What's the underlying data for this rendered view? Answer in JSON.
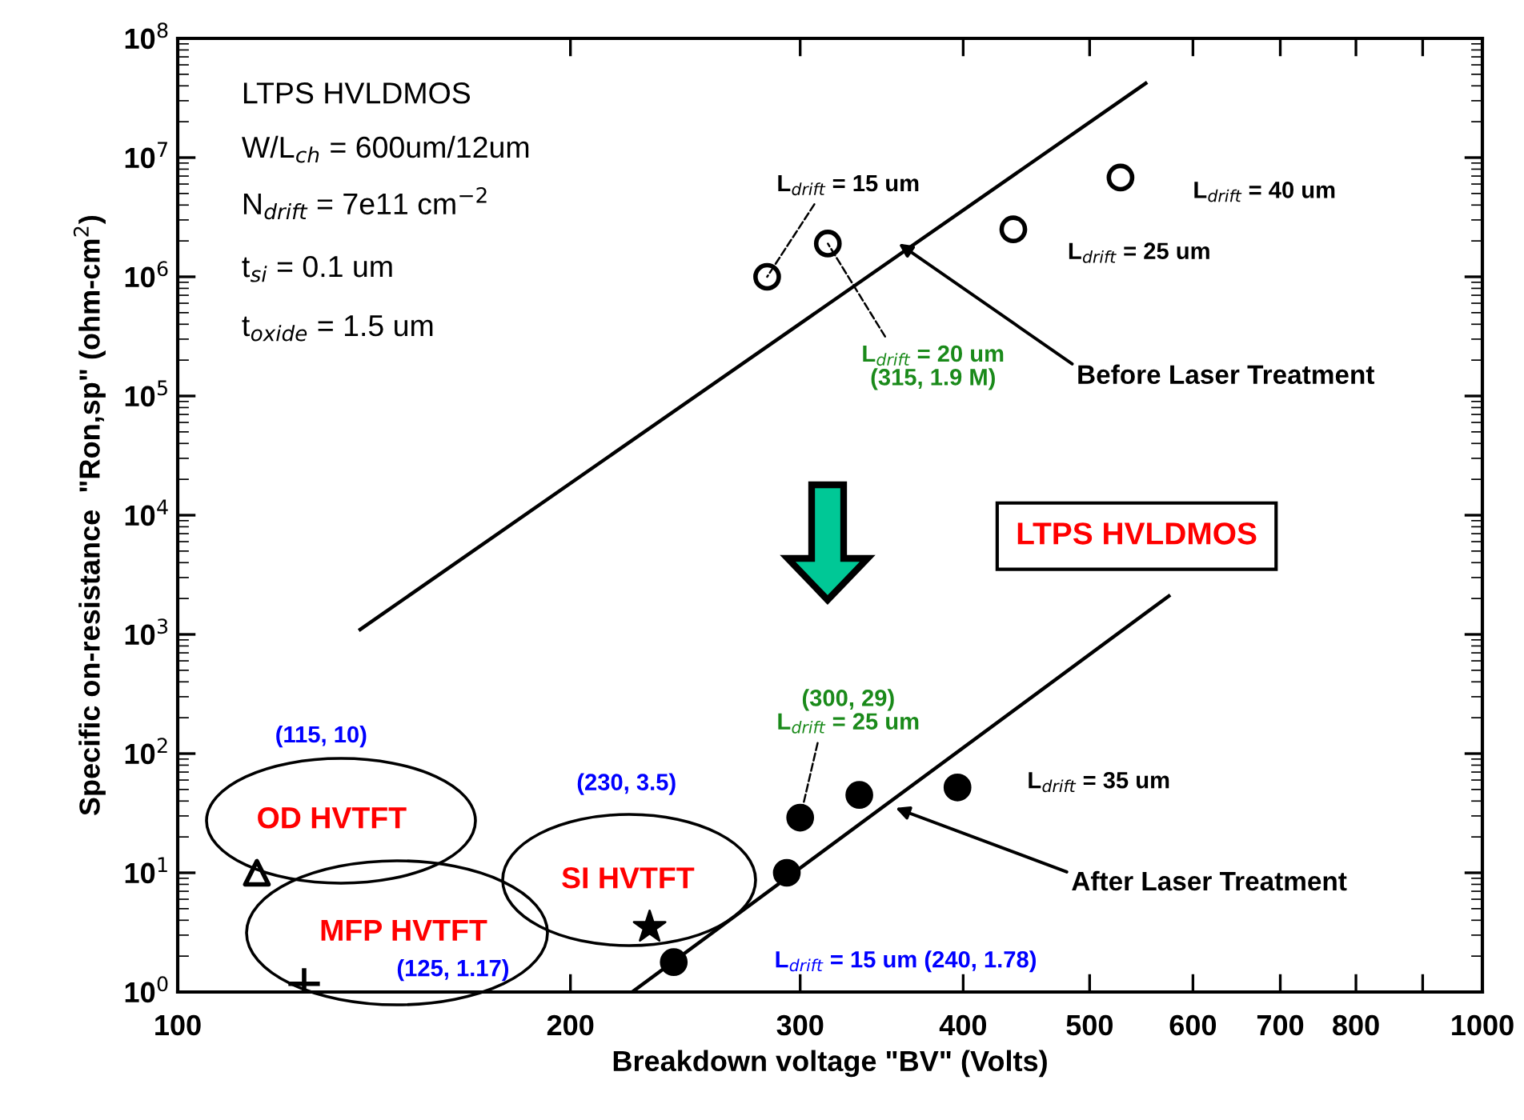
{
  "chart_data": {
    "type": "scatter",
    "xlabel": "Breakdown voltage \"BV\" (Volts)",
    "ylabel": "Specific on-resistance  \"Ron,sp\" (ohm-cm$^{2}$)",
    "log": "xy",
    "grid": false,
    "legend": false,
    "xlim": [
      100,
      1000
    ],
    "xticks": [
      100,
      200,
      300,
      400,
      500,
      600,
      700,
      800,
      {
        "value": 900,
        "label": null
      },
      1000
    ],
    "ylim": [
      1,
      100000000
    ],
    "yticks": [
      {
        "value": 1,
        "label": "10$^{0}$"
      },
      {
        "value": 10,
        "label": "10$^{1}$"
      },
      {
        "value": 100,
        "label": "10$^{2}$"
      },
      {
        "value": 1000,
        "label": "10$^{3}$"
      },
      {
        "value": 10000,
        "label": "10$^{4}$"
      },
      {
        "value": 100000,
        "label": "10$^{5}$"
      },
      {
        "value": 1000000,
        "label": "10$^{6}$"
      },
      {
        "value": 10000000,
        "label": "10$^{7}$"
      },
      {
        "value": 100000000,
        "label": "10$^{8}$"
      }
    ],
    "series": [
      {
        "x": [
          283,
          315,
          437,
          528
        ],
        "values": [
          1000000,
          1900000,
          2500000,
          6800000
        ],
        "color": "#ffffff",
        "marker": "circle"
      },
      {
        "type": "line",
        "x": [
          138,
          552
        ],
        "values": [
          1100,
          42000000
        ],
        "color": "#000000",
        "line_style": "solid"
      },
      {
        "x": [
          240,
          293,
          300,
          333,
          396
        ],
        "values": [
          1.78,
          10,
          29,
          45,
          52
        ],
        "color": "#000000",
        "marker": "circle"
      },
      {
        "type": "line",
        "x": [
          223,
          575
        ],
        "values": [
          1,
          2100
        ],
        "color": "#000000",
        "line_style": "solid"
      },
      {
        "x": [
          115
        ],
        "values": [
          10
        ],
        "color": "#ffffff",
        "marker": "triangle"
      },
      {
        "x": [
          125
        ],
        "values": [
          1.17
        ],
        "color": "#000000",
        "marker": "cross"
      },
      {
        "x": [
          230
        ],
        "values": [
          3.5
        ],
        "color": "#000000",
        "marker": "star"
      }
    ],
    "annotations": [
      "LTPS HVLDMOS",
      "W/L$_{ch}$ = 600um/12um",
      "N$_{drift}$ = 7e11 cm$^{−2}$",
      "t$_{si}$ = 0.1 um",
      "t$_{oxide}$ = 1.5 um",
      "LTPS HVLDMOS",
      {
        "text": "Before Laser Treatment",
        "x": 357,
        "y": 1900000
      },
      {
        "text": "After Laser Treatment",
        "x": 355,
        "y": 35
      },
      {
        "text": "L$_{drift}$ = 15 um",
        "x": 283,
        "y": 1000000
      },
      {
        "text": "L$_{drift}$ = 20 um\n(315, 1.9 M)",
        "x": 315,
        "y": 1900000
      },
      "L$_{drift}$ = 25 um",
      "L$_{drift}$ = 40 um",
      {
        "text": "(300, 29)\nL$_{drift}$ = 25 um",
        "x": 300,
        "y": 29
      },
      "L$_{drift}$ = 35 um",
      "L$_{drift}$ = 15 um (240, 1.78)",
      "(115, 10)",
      "(125, 1.17)",
      "(230, 3.5)",
      "OD HVTFT",
      "SI HVTFT",
      "MFP HVTFT"
    ]
  }
}
